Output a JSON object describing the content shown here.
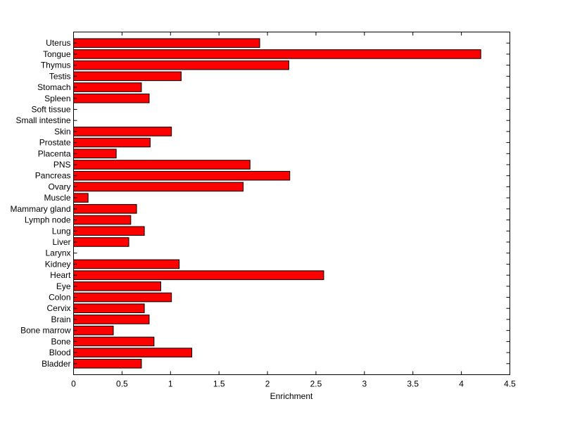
{
  "chart_data": {
    "type": "bar",
    "orientation": "horizontal",
    "title": "",
    "xlabel": "Enrichment",
    "ylabel": "",
    "xlim": [
      0,
      4.5
    ],
    "xticks": [
      "0",
      "0.5",
      "1",
      "1.5",
      "2",
      "2.5",
      "3",
      "3.5",
      "4",
      "4.5"
    ],
    "grid": false,
    "bar_color": "#ff0000",
    "edge_color": "#000000",
    "categories": [
      "Uterus",
      "Tongue",
      "Thymus",
      "Testis",
      "Stomach",
      "Spleen",
      "Soft tissue",
      "Small intestine",
      "Skin",
      "Prostate",
      "Placenta",
      "PNS",
      "Pancreas",
      "Ovary",
      "Muscle",
      "Mammary gland",
      "Lymph node",
      "Lung",
      "Liver",
      "Larynx",
      "Kidney",
      "Heart",
      "Eye",
      "Colon",
      "Cervix",
      "Brain",
      "Bone marrow",
      "Bone",
      "Blood",
      "Bladder"
    ],
    "values": [
      1.92,
      4.2,
      2.22,
      1.11,
      0.7,
      0.78,
      0,
      0,
      1.01,
      0.79,
      0.44,
      1.82,
      2.23,
      1.75,
      0.15,
      0.65,
      0.59,
      0.73,
      0.57,
      0,
      1.09,
      2.58,
      0.9,
      1.01,
      0.73,
      0.78,
      0.41,
      0.83,
      1.22,
      0.7
    ]
  }
}
